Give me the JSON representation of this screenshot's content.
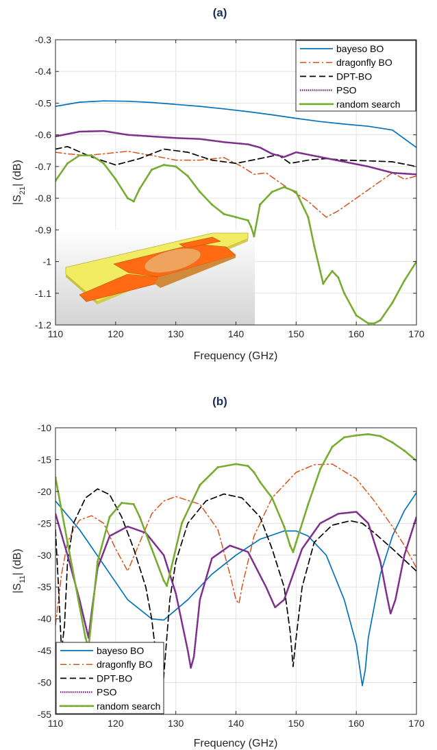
{
  "chart_data": [
    {
      "type": "line",
      "title": "(a)",
      "xlabel": "Frequency (GHz)",
      "ylabel": "|S21| (dB)",
      "ylabel_main": "|S",
      "ylabel_sub": "21",
      "ylabel_tail": "| (dB)",
      "xlim": [
        110,
        170
      ],
      "ylim": [
        -1.2,
        -0.3
      ],
      "xticks": [
        110,
        120,
        130,
        140,
        150,
        160,
        170
      ],
      "xtick_labels": [
        "110",
        "120",
        "130",
        "140",
        "150",
        "160",
        "170"
      ],
      "yticks": [
        -1.2,
        -1.1,
        -1.0,
        -0.9,
        -0.8,
        -0.7,
        -0.6,
        -0.5,
        -0.4,
        -0.3
      ],
      "ytick_labels": [
        "-1.2",
        "-1.1",
        "-1",
        "-0.9",
        "-0.8",
        "-0.7",
        "-0.6",
        "-0.5",
        "-0.4",
        "-0.3"
      ],
      "grid": true,
      "legend_position": "top-right",
      "inset": "device-render",
      "series": [
        {
          "name": "bayeso BO",
          "color": "#0072BD",
          "style": "solid",
          "x": [
            110,
            114,
            118,
            122,
            126,
            130,
            134,
            138,
            142,
            146,
            150,
            154,
            158,
            162,
            166,
            170
          ],
          "y": [
            -0.51,
            -0.497,
            -0.493,
            -0.494,
            -0.498,
            -0.504,
            -0.51,
            -0.518,
            -0.527,
            -0.537,
            -0.548,
            -0.558,
            -0.566,
            -0.573,
            -0.585,
            -0.64
          ]
        },
        {
          "name": "dragonfly BO",
          "color": "#D95319",
          "style": "dashdot",
          "x": [
            110,
            112,
            115,
            118,
            122,
            126,
            130,
            134,
            138,
            141,
            143,
            145,
            148,
            152,
            155,
            157,
            160,
            163,
            166,
            168,
            170
          ],
          "y": [
            -0.655,
            -0.66,
            -0.665,
            -0.66,
            -0.652,
            -0.665,
            -0.68,
            -0.68,
            -0.672,
            -0.7,
            -0.725,
            -0.72,
            -0.76,
            -0.81,
            -0.86,
            -0.84,
            -0.8,
            -0.76,
            -0.72,
            -0.74,
            -0.73
          ]
        },
        {
          "name": "DPT-BO",
          "color": "#000000",
          "style": "dashed",
          "x": [
            110,
            112,
            116,
            120,
            124,
            128,
            132,
            136,
            140,
            144,
            147,
            149,
            152,
            155,
            158,
            162,
            166,
            170
          ],
          "y": [
            -0.645,
            -0.637,
            -0.67,
            -0.695,
            -0.675,
            -0.645,
            -0.655,
            -0.68,
            -0.69,
            -0.675,
            -0.663,
            -0.69,
            -0.68,
            -0.675,
            -0.68,
            -0.682,
            -0.685,
            -0.7
          ]
        },
        {
          "name": "PSO",
          "color": "#7E2F8E",
          "style": "dotted",
          "x": [
            110,
            114,
            118,
            122,
            126,
            130,
            134,
            138,
            142,
            144,
            146,
            148,
            150,
            154,
            158,
            162,
            166,
            170
          ],
          "y": [
            -0.605,
            -0.59,
            -0.588,
            -0.6,
            -0.605,
            -0.61,
            -0.613,
            -0.623,
            -0.63,
            -0.64,
            -0.66,
            -0.67,
            -0.655,
            -0.67,
            -0.685,
            -0.7,
            -0.72,
            -0.725
          ]
        },
        {
          "name": "random search",
          "color": "#77AC30",
          "style": "solid-marker",
          "x": [
            110,
            112,
            114,
            116,
            118,
            120,
            122,
            123,
            124,
            126,
            128,
            130,
            132,
            134,
            136,
            138,
            140,
            142,
            142.5,
            143,
            144,
            146,
            148,
            150,
            152,
            153,
            154,
            154.5,
            155,
            156,
            157,
            158,
            160,
            162,
            163,
            164,
            166,
            168,
            170
          ],
          "y": [
            -0.745,
            -0.69,
            -0.665,
            -0.665,
            -0.69,
            -0.74,
            -0.8,
            -0.81,
            -0.77,
            -0.71,
            -0.695,
            -0.7,
            -0.73,
            -0.78,
            -0.82,
            -0.85,
            -0.86,
            -0.87,
            -0.89,
            -0.92,
            -0.82,
            -0.78,
            -0.765,
            -0.78,
            -0.86,
            -0.95,
            -1.03,
            -1.07,
            -1.055,
            -1.03,
            -1.05,
            -1.1,
            -1.17,
            -1.195,
            -1.195,
            -1.185,
            -1.13,
            -1.06,
            -1.0
          ]
        }
      ]
    },
    {
      "type": "line",
      "title": "(b)",
      "xlabel": "Frequency (GHz)",
      "ylabel": "|S11| (dB)",
      "ylabel_main": "|S",
      "ylabel_sub": "11",
      "ylabel_tail": "| (dB)",
      "xlim": [
        110,
        170
      ],
      "ylim": [
        -55,
        -10
      ],
      "xticks": [
        110,
        120,
        130,
        140,
        150,
        160,
        170
      ],
      "xtick_labels": [
        "110",
        "120",
        "130",
        "140",
        "150",
        "160",
        "170"
      ],
      "yticks": [
        -55,
        -50,
        -45,
        -40,
        -35,
        -30,
        -25,
        -20,
        -15,
        -10
      ],
      "ytick_labels": [
        "-55",
        "-50",
        "-45",
        "-40",
        "-35",
        "-30",
        "-25",
        "-20",
        "-15",
        "-10"
      ],
      "grid": true,
      "legend_position": "bottom-left",
      "series": [
        {
          "name": "bayeso BO",
          "color": "#0072BD",
          "style": "solid",
          "x": [
            110,
            114,
            118,
            122,
            126,
            128,
            132,
            136,
            140,
            144,
            148,
            150,
            152,
            155,
            158,
            160,
            161,
            161.5,
            162,
            164,
            166,
            168,
            170
          ],
          "y": [
            -21.5,
            -26,
            -31.5,
            -37,
            -40,
            -40.2,
            -37,
            -33,
            -30,
            -27.5,
            -26.2,
            -26.2,
            -27,
            -30,
            -37,
            -44,
            -50.5,
            -48,
            -43,
            -33,
            -27,
            -23,
            -20.2
          ]
        },
        {
          "name": "dragonfly BO",
          "color": "#D95319",
          "style": "dashdot",
          "x": [
            110,
            111,
            112,
            113,
            114,
            116,
            118,
            120,
            122,
            124,
            126,
            128,
            130,
            134,
            137,
            139,
            140,
            140.5,
            141,
            143,
            146,
            150,
            153,
            156,
            160,
            163,
            166,
            168,
            170
          ],
          "y": [
            -41,
            -33,
            -28,
            -26,
            -24.5,
            -23.8,
            -25,
            -29,
            -32.5,
            -28,
            -23.5,
            -21.5,
            -20.8,
            -22,
            -26,
            -33,
            -37,
            -37.6,
            -35,
            -27,
            -21,
            -17,
            -15.8,
            -15.7,
            -18,
            -21.5,
            -25.5,
            -28.5,
            -32
          ]
        },
        {
          "name": "DPT-BO",
          "color": "#000000",
          "style": "dashed",
          "x": [
            110,
            110.5,
            111,
            111.5,
            112,
            113,
            115,
            117,
            119,
            121,
            123,
            125,
            126,
            127,
            127.5,
            128,
            128.5,
            129,
            130,
            132,
            135,
            138,
            141,
            144,
            146,
            148,
            149,
            149.5,
            150,
            151,
            153,
            156,
            159,
            161,
            163,
            166,
            170
          ],
          "y": [
            -26,
            -35,
            -45,
            -41,
            -31,
            -25,
            -21,
            -19.6,
            -20.5,
            -24,
            -29,
            -35,
            -40,
            -48,
            -54,
            -49,
            -43,
            -37,
            -31,
            -25,
            -21.5,
            -20.4,
            -21,
            -24,
            -29,
            -35,
            -42,
            -47.5,
            -43,
            -35,
            -28,
            -25.3,
            -24.6,
            -25,
            -26.5,
            -29,
            -32.5
          ]
        },
        {
          "name": "PSO",
          "color": "#7E2F8E",
          "style": "dotted",
          "x": [
            110,
            112,
            114,
            115,
            115.5,
            116,
            117,
            119,
            122,
            125,
            128,
            130,
            132,
            132.5,
            133,
            134,
            136,
            139,
            142,
            145,
            146.5,
            148,
            151,
            154,
            157,
            160,
            162,
            164,
            165,
            165.7,
            166.5,
            168,
            170
          ],
          "y": [
            -23.5,
            -30,
            -37,
            -41,
            -43,
            -39,
            -32,
            -27,
            -25.5,
            -26.5,
            -30,
            -36,
            -45,
            -47.7,
            -46,
            -37,
            -30.5,
            -28.5,
            -29.5,
            -35,
            -38.2,
            -37,
            -29,
            -25,
            -23.5,
            -23.2,
            -25,
            -31,
            -36,
            -39.2,
            -37,
            -30,
            -24
          ]
        },
        {
          "name": "random search",
          "color": "#77AC30",
          "style": "solid-marker",
          "x": [
            110,
            112,
            114,
            115,
            115.5,
            116,
            117,
            119,
            121,
            123,
            124,
            126,
            128,
            128.5,
            129,
            131,
            134,
            137,
            140,
            142,
            143,
            144,
            146,
            148,
            149,
            149.5,
            150,
            152,
            154,
            156,
            158,
            160,
            162,
            164,
            166,
            168,
            170
          ],
          "y": [
            -17.8,
            -28,
            -38,
            -43,
            -44.5,
            -40,
            -31,
            -24,
            -21.8,
            -22,
            -24,
            -29,
            -34,
            -34.8,
            -33,
            -25,
            -19,
            -16.2,
            -15.7,
            -16,
            -17,
            -18.5,
            -21,
            -25.5,
            -28.5,
            -29.5,
            -28,
            -22,
            -16.5,
            -13,
            -11.5,
            -11.2,
            -11,
            -11.3,
            -12.3,
            -13.6,
            -15.2
          ]
        }
      ]
    }
  ]
}
